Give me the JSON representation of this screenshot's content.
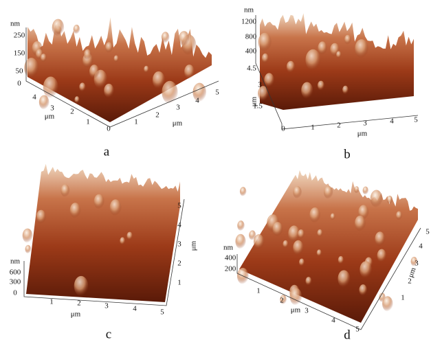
{
  "panels": [
    {
      "label": "a",
      "z_unit": "nm",
      "z_ticks": [
        "250",
        "150",
        "50",
        "0"
      ],
      "left_ticks": [
        "4",
        "3",
        "2",
        "1",
        "0"
      ],
      "left_unit": "μm",
      "bottom_ticks": [
        "1",
        "2",
        "3",
        "4",
        "5"
      ],
      "bottom_unit": "μm"
    },
    {
      "label": "b",
      "z_unit": "nm",
      "z_ticks": [
        "1200",
        "800",
        "400"
      ],
      "left_ticks": [
        "4.5",
        "3",
        "1.5"
      ],
      "left_unit": "μm",
      "bottom_ticks": [
        "0",
        "1",
        "2",
        "3",
        "4",
        "5"
      ],
      "bottom_unit": "μm"
    },
    {
      "label": "c",
      "z_unit": "nm",
      "z_ticks": [
        "600",
        "300",
        "0"
      ],
      "left_ticks": [
        "5",
        "4",
        "3",
        "2",
        "1"
      ],
      "left_unit": "μm",
      "bottom_ticks": [
        "1",
        "2",
        "3",
        "4",
        "5"
      ],
      "bottom_unit": "μm"
    },
    {
      "label": "d",
      "z_unit": "nm",
      "z_ticks": [
        "400",
        "200"
      ],
      "left_ticks": [
        "1",
        "2",
        "3",
        "4",
        "5"
      ],
      "left_unit": "μm",
      "bottom_ticks": [
        "1",
        "2",
        "3",
        "4",
        "5"
      ],
      "bottom_unit": "μm"
    }
  ]
}
